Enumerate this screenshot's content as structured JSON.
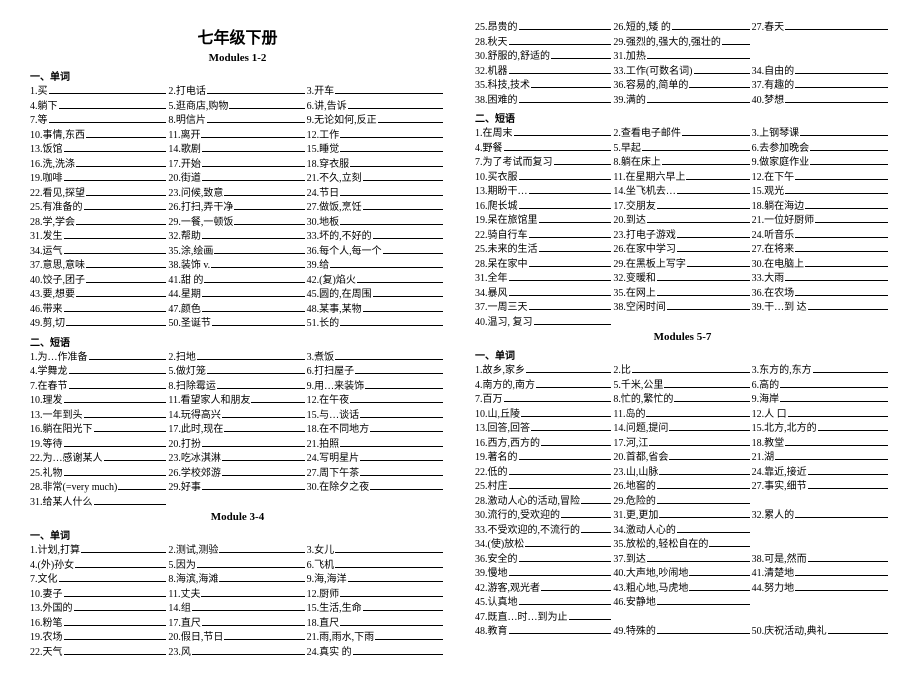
{
  "title": "七年级下册",
  "left": {
    "mod12": "Modules 1-2",
    "sec1": "一、单词",
    "w1": [
      [
        "1.买",
        "2.打电话",
        "3.开车"
      ],
      [
        "4.躺下",
        "5.逛商店,购物",
        "6.讲,告诉"
      ],
      [
        "7.等",
        "8.明信片",
        "9.无论如何,反正"
      ],
      [
        "10.事情,东西",
        "11.离开",
        "12.工作"
      ],
      [
        "13.饭馆",
        "14.歌剧",
        "15.睡觉"
      ],
      [
        "16.洗,洗涤",
        "17.开始",
        "18.穿衣服"
      ],
      [
        "19.咖啡",
        "20.街道",
        "21.不久,立刻"
      ],
      [
        "22.看见,探望",
        "23.问候,致意",
        "24.节日"
      ],
      [
        "25.有准备的",
        "26.打扫,弄干净",
        "27.做饭,烹饪"
      ],
      [
        "28.学,学会",
        "29.一餐,一顿饭",
        "30.地板"
      ],
      [
        "31.发生",
        "32.帮助",
        "33.坏的,不好的"
      ],
      [
        "34.运气",
        "35.涂,绘画",
        "36.每个人,每一个"
      ],
      [
        "37.意思,意味",
        "38.装饰 v.",
        "39.给"
      ],
      [
        "40.饺子,团子",
        "41.甜 的",
        "42.(复)焰火"
      ],
      [
        "43.要,想要",
        "44.星期",
        "45.圆的,在周围"
      ],
      [
        "46.带来",
        "47.颜色",
        "48.某事,某物"
      ],
      [
        "49.剪,切",
        "50.圣诞节",
        "51.长的"
      ]
    ],
    "sec2": "二、短语",
    "p1": [
      [
        "1.为…作准备",
        "2.扫地",
        "3.煮饭"
      ],
      [
        "4.学舞龙",
        "5.做灯笼",
        "6.打扫屋子"
      ],
      [
        "7.在春节",
        "8.扫除霉运",
        "9.用…来装饰"
      ],
      [
        "10.理发",
        "11.看望家人和朋友",
        "12.在午夜"
      ],
      [
        "13.一年到头",
        "14.玩得高兴",
        "15.与…谈话"
      ],
      [
        "16.躺在阳光下",
        "17.此时,现在",
        "18.在不同地方"
      ],
      [
        "19.等待",
        "20.打扮",
        "21.拍照"
      ],
      [
        "22.为…感谢某人",
        "23.吃冰淇淋",
        "24.写明星片"
      ],
      [
        "25.礼物",
        "26.学校郊游",
        "27.周下午茶"
      ],
      [
        "28.非常(=very much)",
        "29.好事",
        "30.在除夕之夜"
      ],
      [
        "31.给某人什么",
        "",
        ""
      ]
    ],
    "mod34": "Module 3-4",
    "sec3": "一、单词",
    "w2": [
      [
        "1.计划,打算",
        "2.测试,测验",
        "3.女儿"
      ],
      [
        "4.(外)孙女",
        "5.因为",
        "6.飞机"
      ],
      [
        "7.文化",
        "8.海滨,海滩",
        "9.海,海洋"
      ],
      [
        "10.妻子",
        "11.丈夫",
        "12.厨师"
      ],
      [
        "13.外国的",
        "14.组",
        "15.生活,生命"
      ],
      [
        "16.粉笔",
        "17.直尺",
        "18.直尺"
      ],
      [
        "19.农场",
        "20.假日,节日",
        "21.雨,雨水,下雨"
      ],
      [
        "22.天气",
        "23.风",
        "24.真实 的"
      ]
    ]
  },
  "right": {
    "w3": [
      [
        "25.昂贵的",
        "26.短的,矮 的",
        "27.春天"
      ],
      [
        "28.秋天",
        "29.强烈的,强大的,强壮的",
        ""
      ],
      [
        "30.舒服的,舒适的",
        "31.加热",
        ""
      ],
      [
        "32.机器",
        "33.工作(可数名词)",
        "34.自由的"
      ],
      [
        "35.科技,技术",
        "36.容易的,简单的",
        "37.有趣的"
      ],
      [
        "38.困难的",
        "39.满的",
        "40.梦想"
      ]
    ],
    "sec4": "二、短语",
    "p2": [
      [
        "1.在周末",
        "2.查看电子邮件",
        "3.上钢琴课"
      ],
      [
        "4.野餐",
        "5.早起",
        "6.去参加晚会"
      ],
      [
        "7.为了考试而复习",
        "8.躺在床上",
        "9.做家庭作业"
      ],
      [
        "10.买衣服",
        "11.在星期六早上",
        "12.在下午"
      ],
      [
        "13.期盼干…",
        "14.坐飞机去…",
        "15.观光"
      ],
      [
        "16.爬长城",
        "17.交朋友",
        "18.躺在海边"
      ],
      [
        "19.呆在旅馆里",
        "20.到达",
        "21.一位好厨师"
      ],
      [
        "22.骑自行车",
        "23.打电子游戏",
        "24.听音乐"
      ],
      [
        "25.未来的生活",
        "26.在家中学习",
        "27.在将来"
      ],
      [
        "28.呆在家中",
        "29.在黑板上写字",
        "30.在电脑上"
      ],
      [
        "31.全年",
        "32.变暖和",
        "33.大雨"
      ],
      [
        "34.暴风",
        "35.在网上",
        "36.在农场"
      ],
      [
        "37.一周三天",
        "38.空闲时间",
        "39.干…到 达"
      ],
      [
        "40.温习, 复习",
        "",
        ""
      ]
    ],
    "mod57": "Modules 5-7",
    "sec5": "一、单词",
    "w4": [
      [
        "1.故乡,家乡",
        "2.比",
        "3.东方的,东方"
      ],
      [
        "4.南方的,南方",
        "5.千米,公里",
        "6.高的"
      ],
      [
        "7.百万",
        "8.忙的,繁忙的",
        "9.海岸"
      ],
      [
        "10.山,丘陵",
        "11.岛的",
        "12.人 口"
      ],
      [
        "13.回答,回答",
        "14.问题,提问",
        "15.北方,北方的"
      ],
      [
        "16.西方,西方的",
        "17.河,江",
        "18.教堂"
      ],
      [
        "19.著名的",
        "20.首都,省会",
        "21.湖"
      ],
      [
        "22.低的",
        "23.山,山脉",
        "24.靠近,接近"
      ],
      [
        "25.村庄",
        "26.地窖的",
        "27.事实,细节"
      ],
      [
        "28.激动人心的活动,冒险",
        "29.危险的",
        ""
      ],
      [
        "30.流行的,受欢迎的",
        "31.更,更加",
        "32.累人的"
      ],
      [
        "33.不受欢迎的,不流行的",
        "34.激动人心的",
        ""
      ],
      [
        "34.(使)放松",
        "35.放松的,轻松自在的",
        ""
      ],
      [
        "36.安全的",
        "37.到达",
        "38.可是,然而"
      ],
      [
        "39.慢地",
        "40.大声地,吵闹地",
        "41.清楚地"
      ],
      [
        "42.游客,观光者",
        "43.粗心地,马虎地",
        "44.努力地"
      ],
      [
        "45.认真地",
        "46.安静地",
        ""
      ],
      [
        "47.既直…时…到为止",
        "",
        ""
      ],
      [
        "48.教育",
        "49.特殊的",
        "50.庆祝活动,典礼"
      ]
    ]
  }
}
